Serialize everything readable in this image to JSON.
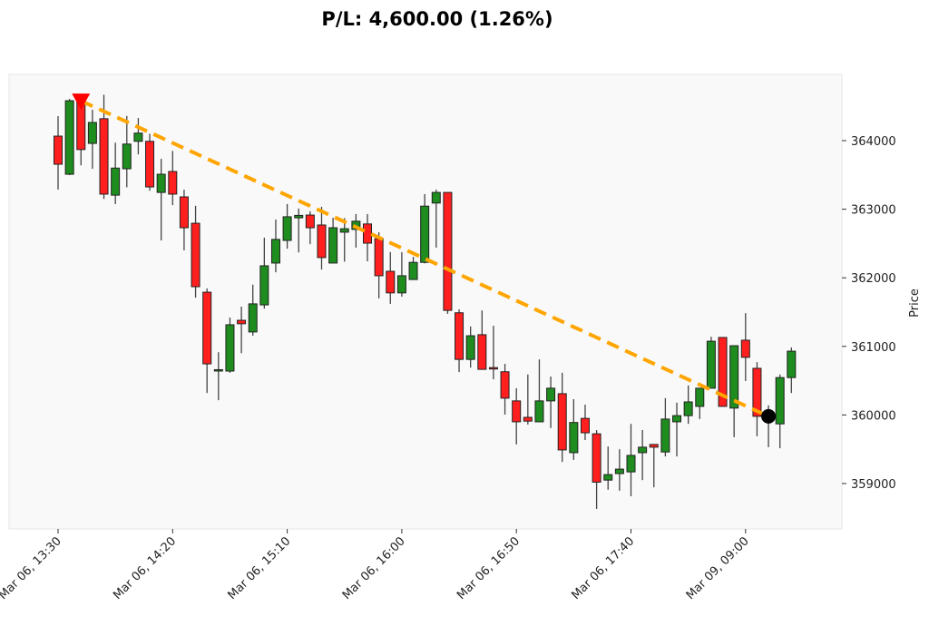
{
  "chart_data": {
    "type": "candlestick",
    "title": "P/L: 4,600.00 (1.26%)",
    "xlabel": "",
    "ylabel": "Price",
    "ylim": [
      358338,
      364966
    ],
    "yticks": [
      359000,
      360000,
      361000,
      362000,
      363000,
      364000
    ],
    "xtick_labels": [
      "Mar 06, 13:30",
      "Mar 06, 14:20",
      "Mar 06, 15:10",
      "Mar 06, 16:00",
      "Mar 06, 16:50",
      "Mar 06, 17:40",
      "Mar 09, 09:00"
    ],
    "xtick_index": [
      0,
      10,
      20,
      30,
      40,
      50,
      60
    ],
    "grid": false,
    "colors": {
      "up": "#1e8c1e",
      "down": "#ff1f1f",
      "edge": "#222222",
      "trade_line": "#ffa500",
      "entry_marker": "#ff0000",
      "exit_marker": "#000000",
      "plot_bg": "#f9f9f9"
    },
    "ohlc": [
      [
        364066,
        364357,
        363286,
        363656
      ],
      [
        363510,
        364608,
        363497,
        364582
      ],
      [
        364580,
        364600,
        363640,
        363870
      ],
      [
        363960,
        364450,
        363590,
        364265
      ],
      [
        364320,
        364670,
        363150,
        363220
      ],
      [
        363205,
        363970,
        363075,
        363600
      ],
      [
        363590,
        364360,
        363320,
        363950
      ],
      [
        363990,
        364330,
        363800,
        364110
      ],
      [
        363990,
        364100,
        363270,
        363325
      ],
      [
        363245,
        363735,
        362545,
        363510
      ],
      [
        363550,
        363850,
        363060,
        363220
      ],
      [
        363180,
        363285,
        362400,
        362730
      ],
      [
        362795,
        363050,
        361710,
        361870
      ],
      [
        361790,
        361845,
        360320,
        360745
      ],
      [
        360650,
        360915,
        360215,
        360660
      ],
      [
        360640,
        361420,
        360615,
        361315
      ],
      [
        361380,
        361580,
        360900,
        361330
      ],
      [
        361210,
        361900,
        361155,
        361620
      ],
      [
        361605,
        362585,
        361550,
        362175
      ],
      [
        362215,
        362850,
        362080,
        362560
      ],
      [
        362545,
        363075,
        362425,
        362890
      ],
      [
        362875,
        363010,
        362370,
        362910
      ],
      [
        362915,
        362970,
        362490,
        362730
      ],
      [
        362770,
        363035,
        362120,
        362295
      ],
      [
        362215,
        362875,
        362215,
        362730
      ],
      [
        362665,
        362870,
        362235,
        362715
      ],
      [
        362705,
        362930,
        362440,
        362825
      ],
      [
        362785,
        362930,
        362240,
        362505
      ],
      [
        362570,
        362665,
        361700,
        362030
      ],
      [
        362095,
        362375,
        361620,
        361780
      ],
      [
        361780,
        362375,
        361725,
        362030
      ],
      [
        361975,
        362305,
        361975,
        362225
      ],
      [
        362225,
        363220,
        362210,
        363045
      ],
      [
        363090,
        363285,
        362440,
        363245
      ],
      [
        363245,
        363245,
        361475,
        361525
      ],
      [
        361490,
        361540,
        360625,
        360810
      ],
      [
        360810,
        361290,
        360690,
        361155
      ],
      [
        361170,
        361525,
        360665,
        360665
      ],
      [
        360690,
        361300,
        360520,
        360680
      ],
      [
        360630,
        360745,
        360005,
        360245
      ],
      [
        360205,
        360390,
        359570,
        359900
      ],
      [
        359965,
        360590,
        359860,
        359910
      ],
      [
        359900,
        360810,
        359900,
        360205
      ],
      [
        360205,
        360560,
        359810,
        360390
      ],
      [
        360310,
        360615,
        359315,
        359490
      ],
      [
        359450,
        360230,
        359345,
        359890
      ],
      [
        359950,
        360150,
        359635,
        359740
      ],
      [
        359725,
        359780,
        358630,
        359020
      ],
      [
        359050,
        359540,
        358910,
        359130
      ],
      [
        359145,
        359500,
        358895,
        359210
      ],
      [
        359170,
        359870,
        358815,
        359410
      ],
      [
        359450,
        359780,
        359050,
        359530
      ],
      [
        359570,
        359570,
        358945,
        359530
      ],
      [
        359460,
        360245,
        359395,
        359940
      ],
      [
        359900,
        360180,
        359395,
        359990
      ],
      [
        359990,
        360430,
        359870,
        360190
      ],
      [
        360125,
        360390,
        359940,
        360390
      ],
      [
        360390,
        361140,
        360390,
        361075
      ],
      [
        361130,
        361130,
        360125,
        360125
      ],
      [
        360100,
        361010,
        359675,
        361010
      ],
      [
        361090,
        361485,
        360495,
        360840
      ],
      [
        360680,
        360770,
        359690,
        359980
      ],
      [
        359960,
        360140,
        359530,
        359980
      ],
      [
        359870,
        360590,
        359515,
        360545
      ],
      [
        360545,
        360985,
        360320,
        360930
      ]
    ],
    "trade": {
      "side": "short",
      "entry_index": 2,
      "entry_price": 364580,
      "exit_index": 62,
      "exit_price": 359980
    }
  }
}
